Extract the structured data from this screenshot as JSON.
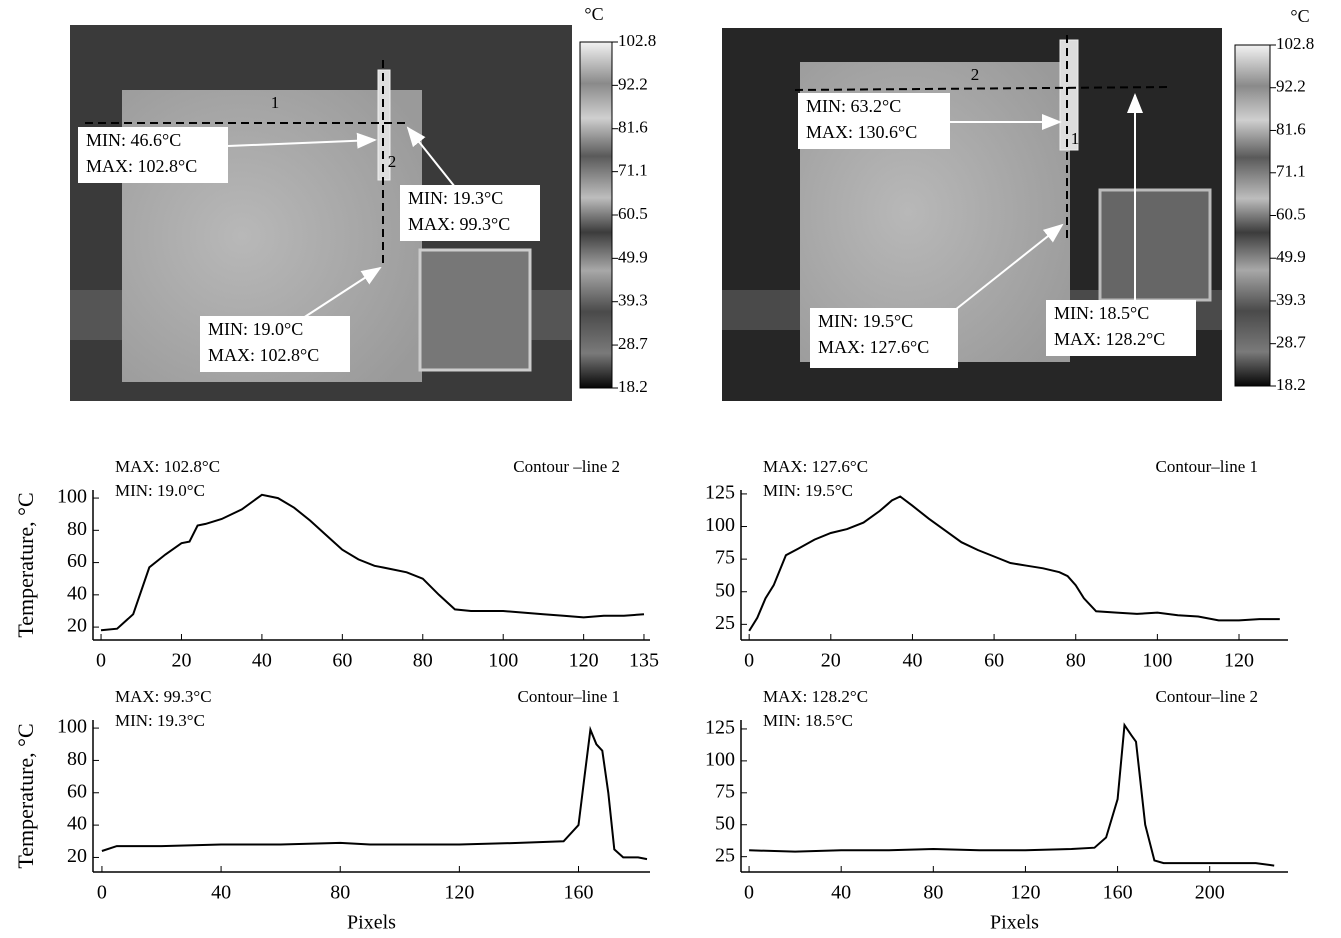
{
  "thermal_images": [
    {
      "unit": "°C",
      "colorbar_ticks": [
        102.8,
        92.2,
        81.6,
        71.1,
        60.5,
        49.9,
        39.3,
        28.7,
        18.2
      ],
      "line_labels": [
        "1",
        "2"
      ],
      "callouts": [
        [
          "MIN: 46.6°C",
          "MAX: 102.8°C"
        ],
        [
          "MIN: 19.3°C",
          "MAX: 99.3°C"
        ],
        [
          "MIN: 19.0°C",
          "MAX: 102.8°C"
        ]
      ]
    },
    {
      "unit": "°C",
      "colorbar_ticks": [
        102.8,
        92.2,
        81.6,
        71.1,
        60.5,
        49.9,
        39.3,
        28.7,
        18.2
      ],
      "line_labels": [
        "2",
        "1"
      ],
      "callouts": [
        [
          "MIN: 63.2°C",
          "MAX: 130.6°C"
        ],
        [
          "MIN: 19.5°C",
          "MAX: 127.6°C"
        ],
        [
          "MIN: 18.5°C",
          "MAX: 128.2°C"
        ]
      ]
    }
  ],
  "chart_data": [
    {
      "type": "line",
      "title": "Contour –line 2",
      "annotations": [
        "MAX: 102.8°C",
        "MIN: 19.0°C"
      ],
      "ylabel": "Temperature, °C",
      "color": "#000000",
      "x": [
        0,
        4,
        8,
        12,
        16,
        20,
        22,
        24,
        26,
        30,
        35,
        40,
        44,
        48,
        52,
        56,
        60,
        64,
        68,
        70,
        72,
        76,
        80,
        84,
        88,
        92,
        100,
        110,
        115,
        120,
        125,
        130,
        135
      ],
      "values": [
        18,
        19,
        28,
        57,
        65,
        72,
        73,
        83,
        84,
        87,
        93,
        102,
        100,
        94,
        86,
        77,
        68,
        62,
        58,
        57,
        56,
        54,
        50,
        40,
        31,
        30,
        30,
        28,
        27,
        26,
        27,
        27,
        28
      ],
      "xlim": [
        -2,
        136.5
      ],
      "ylim": [
        12,
        105
      ],
      "xticks": [
        0,
        20,
        40,
        60,
        80,
        100,
        120,
        135
      ],
      "yticks": [
        20,
        40,
        60,
        80,
        100
      ]
    },
    {
      "type": "line",
      "title": "Contour–line 1",
      "annotations": [
        "MAX: 127.6°C",
        "MIN: 19.5°C"
      ],
      "color": "#000000",
      "x": [
        0,
        2,
        4,
        6,
        9,
        12,
        16,
        20,
        24,
        28,
        32,
        35,
        37,
        40,
        44,
        48,
        52,
        56,
        60,
        64,
        68,
        72,
        76,
        78,
        80,
        82,
        85,
        90,
        95,
        100,
        105,
        110,
        115,
        120,
        125,
        130
      ],
      "values": [
        20,
        30,
        45,
        55,
        78,
        83,
        90,
        95,
        98,
        103,
        112,
        120,
        123,
        116,
        106,
        97,
        88,
        82,
        77,
        72,
        70,
        68,
        65,
        62,
        55,
        45,
        35,
        34,
        33,
        34,
        32,
        31,
        28,
        28,
        29,
        29
      ],
      "xlim": [
        -2,
        132
      ],
      "ylim": [
        13,
        128
      ],
      "xticks": [
        0,
        20,
        40,
        60,
        80,
        100,
        120
      ],
      "yticks": [
        25,
        50,
        75,
        100,
        125
      ]
    },
    {
      "type": "line",
      "title": "Contour–line 1",
      "annotations": [
        "MAX: 99.3°C",
        "MIN: 19.3°C"
      ],
      "ylabel": "Temperature, °C",
      "xlabel": "Pixels",
      "color": "#000000",
      "x": [
        0,
        5,
        20,
        40,
        60,
        80,
        90,
        100,
        120,
        140,
        155,
        160,
        162,
        164,
        166,
        168,
        170,
        172,
        175,
        180,
        183
      ],
      "values": [
        24,
        27,
        27,
        28,
        28,
        29,
        28,
        28,
        28,
        29,
        30,
        40,
        70,
        99,
        90,
        86,
        60,
        25,
        20,
        20,
        19
      ],
      "xlim": [
        -3,
        184
      ],
      "ylim": [
        11,
        105
      ],
      "xticks": [
        0,
        40,
        80,
        120,
        160
      ],
      "yticks": [
        20,
        40,
        60,
        80,
        100
      ]
    },
    {
      "type": "line",
      "title": "Contour–line 2",
      "annotations": [
        "MAX: 128.2°C",
        "MIN: 18.5°C"
      ],
      "xlabel": "Pixels",
      "color": "#000000",
      "x": [
        0,
        20,
        40,
        60,
        80,
        100,
        120,
        140,
        150,
        155,
        160,
        163,
        166,
        168,
        172,
        176,
        180,
        200,
        220,
        228
      ],
      "values": [
        30,
        29,
        30,
        30,
        31,
        30,
        30,
        31,
        32,
        40,
        70,
        128,
        120,
        115,
        50,
        22,
        20,
        20,
        20,
        18
      ],
      "xlim": [
        -3.5,
        234
      ],
      "ylim": [
        13,
        132
      ],
      "xticks": [
        0,
        40,
        80,
        120,
        160,
        200
      ],
      "yticks": [
        25,
        50,
        75,
        100,
        125
      ]
    }
  ]
}
